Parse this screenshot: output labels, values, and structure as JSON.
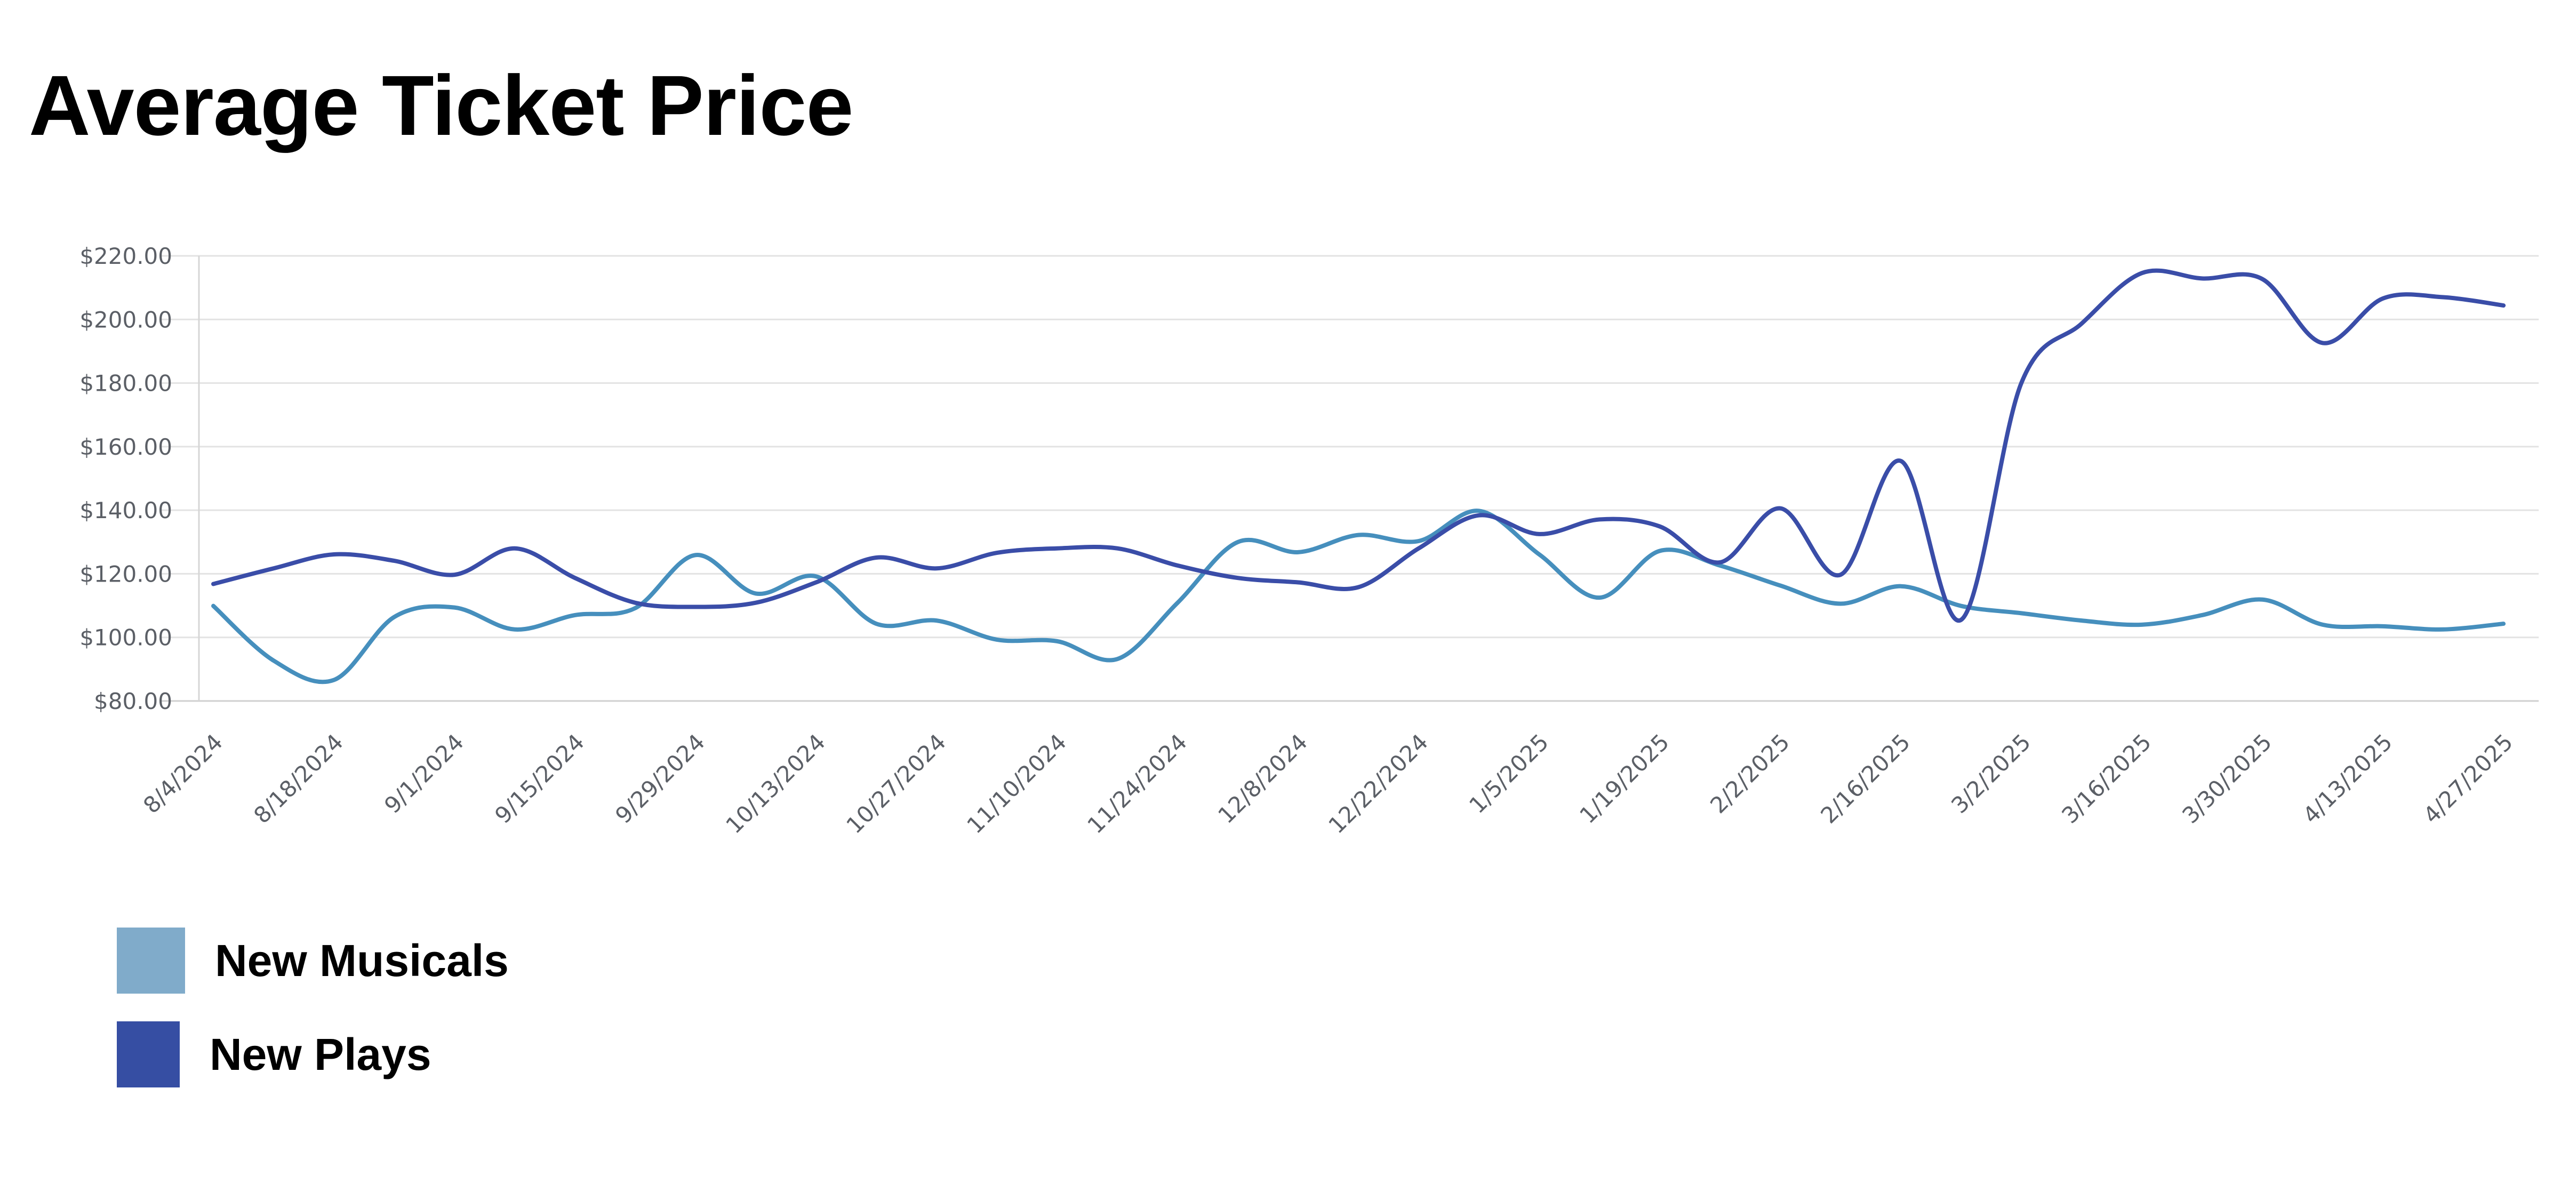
{
  "title": "Average Ticket Price",
  "legend": [
    {
      "label": "New Musicals",
      "color": "#80abca"
    },
    {
      "label": "New Plays",
      "color": "#364ea3"
    }
  ],
  "chart_data": {
    "type": "line",
    "title": "Average Ticket Price",
    "xlabel": "",
    "ylabel": "",
    "ylim": [
      80,
      220
    ],
    "yticks": [
      80,
      100,
      120,
      140,
      160,
      180,
      200,
      220
    ],
    "ytick_labels": [
      "$80.00",
      "$100.00",
      "$120.00",
      "$140.00",
      "$160.00",
      "$180.00",
      "$200.00",
      "$220.00"
    ],
    "grid": true,
    "legend_position": "bottom-left",
    "x": [
      "8/4/2024",
      "8/11/2024",
      "8/18/2024",
      "8/25/2024",
      "9/1/2024",
      "9/8/2024",
      "9/15/2024",
      "9/22/2024",
      "9/29/2024",
      "10/6/2024",
      "10/13/2024",
      "10/20/2024",
      "10/27/2024",
      "11/3/2024",
      "11/10/2024",
      "11/17/2024",
      "11/24/2024",
      "12/1/2024",
      "12/8/2024",
      "12/15/2024",
      "12/22/2024",
      "12/29/2024",
      "1/5/2025",
      "1/12/2025",
      "1/19/2025",
      "1/26/2025",
      "2/2/2025",
      "2/9/2025",
      "2/16/2025",
      "2/23/2025",
      "3/2/2025",
      "3/9/2025",
      "3/16/2025",
      "3/23/2025",
      "3/30/2025",
      "4/6/2025",
      "4/13/2025",
      "4/20/2025",
      "4/27/2025"
    ],
    "xtick_labels": [
      "8/4/2024",
      "8/18/2024",
      "9/1/2024",
      "9/15/2024",
      "9/29/2024",
      "10/13/2024",
      "10/27/2024",
      "11/10/2024",
      "11/24/2024",
      "12/8/2024",
      "12/22/2024",
      "1/5/2025",
      "1/19/2025",
      "2/2/2025",
      "2/16/2025",
      "3/2/2025",
      "3/16/2025",
      "3/30/2025",
      "4/13/2025",
      "4/27/2025"
    ],
    "series": [
      {
        "name": "New Musicals",
        "color": "#468fbd",
        "values": [
          109.9,
          92.7,
          86.6,
          106.4,
          109.4,
          102.5,
          107.0,
          109.2,
          125.9,
          113.8,
          119.2,
          104.3,
          105.3,
          99.3,
          98.8,
          93.2,
          110.9,
          130.0,
          126.8,
          132.2,
          130.3,
          139.8,
          126.1,
          112.5,
          127.2,
          122.6,
          116.3,
          110.6,
          116.1,
          109.9,
          107.6,
          105.3,
          104.0,
          107.0,
          111.9,
          104.0,
          103.5,
          102.5,
          104.3
        ]
      },
      {
        "name": "New Plays",
        "color": "#3a4da8",
        "values": [
          116.8,
          121.7,
          126.1,
          124.1,
          119.7,
          128.0,
          118.7,
          110.9,
          109.6,
          110.9,
          117.3,
          125.1,
          121.7,
          126.6,
          128.0,
          128.0,
          122.6,
          118.7,
          117.3,
          115.8,
          128.0,
          138.4,
          132.5,
          137.1,
          134.9,
          123.6,
          140.6,
          119.7,
          155.5,
          105.5,
          180.0,
          198.7,
          214.6,
          212.9,
          212.7,
          192.6,
          206.6,
          207.0,
          204.4
        ]
      }
    ]
  }
}
